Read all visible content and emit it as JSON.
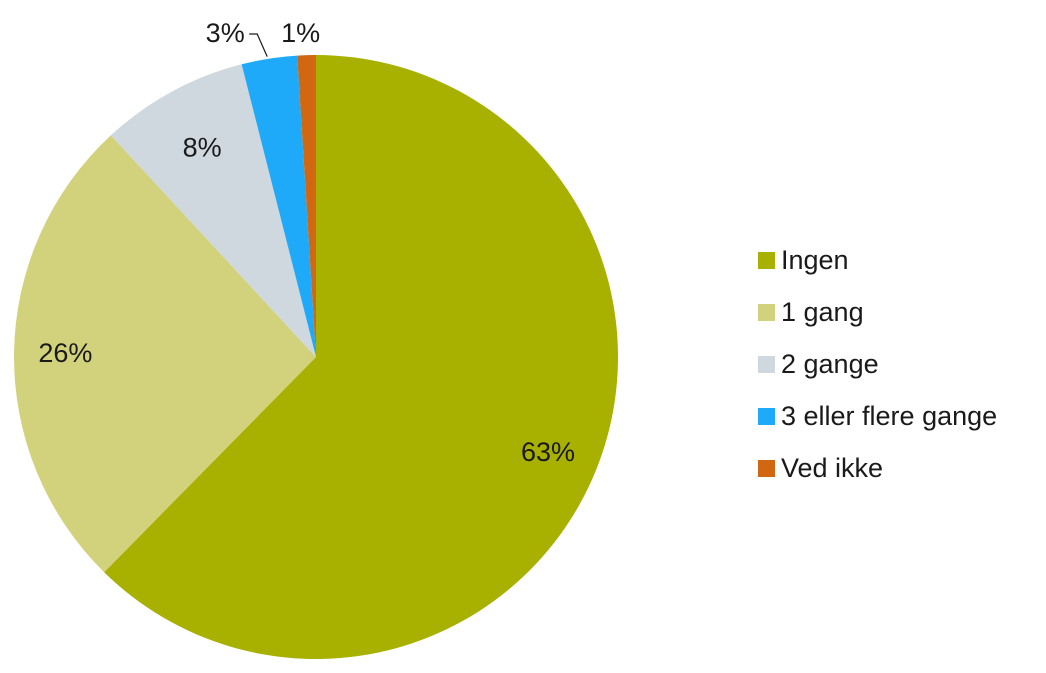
{
  "chart_data": {
    "type": "pie",
    "categories": [
      "Ingen",
      "1 gang",
      "2 gange",
      "3 eller flere gange",
      "Ved ikke"
    ],
    "values": [
      63,
      26,
      8,
      3,
      1
    ],
    "value_labels": [
      "63%",
      "26%",
      "8%",
      "3%",
      "1%"
    ],
    "unit": "%",
    "colors": [
      "#a8b000",
      "#d3d27c",
      "#cfd8df",
      "#1faaf9",
      "#d16811"
    ],
    "start_angle": "12 o'clock",
    "direction": "clockwise",
    "legend_position": "right"
  }
}
